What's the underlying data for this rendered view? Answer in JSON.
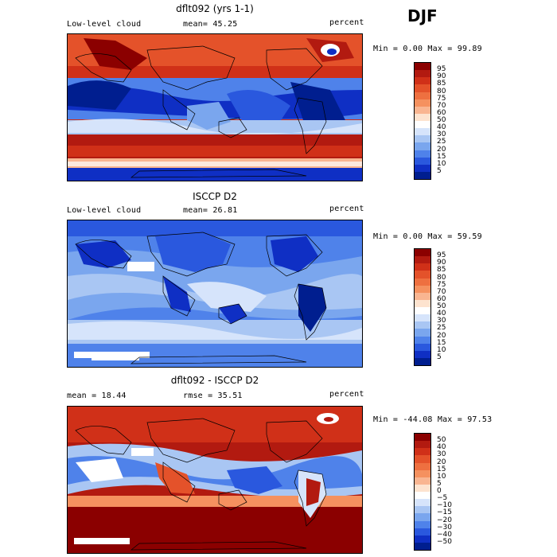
{
  "season": "DJF",
  "panels": [
    {
      "title": "dflt092 (yrs 1-1)",
      "left": "Low-level cloud",
      "middle": "mean=  45.25",
      "right": "percent",
      "stats": "Min =   0.00 Max =  99.89",
      "colorbar": {
        "labels": [
          "95",
          "90",
          "85",
          "80",
          "75",
          "70",
          "60",
          "50",
          "40",
          "30",
          "25",
          "20",
          "15",
          "10",
          "5"
        ],
        "colors": [
          "#8b0000",
          "#b21a10",
          "#d03018",
          "#e4522a",
          "#ee7040",
          "#f5915f",
          "#f9b591",
          "#fde3cf",
          "#ffffff",
          "#d6e4fb",
          "#a9c6f3",
          "#7aa6ee",
          "#4f82ea",
          "#2a58de",
          "#0f2fc4",
          "#001e8f"
        ]
      }
    },
    {
      "title": "ISCCP D2",
      "left": "Low-level cloud",
      "middle": "mean=  26.81",
      "right": "percent",
      "stats": "Min =   0.00 Max =  59.59",
      "colorbar": {
        "labels": [
          "95",
          "90",
          "85",
          "80",
          "75",
          "70",
          "60",
          "50",
          "40",
          "30",
          "25",
          "20",
          "15",
          "10",
          "5"
        ],
        "colors": [
          "#8b0000",
          "#b21a10",
          "#d03018",
          "#e4522a",
          "#ee7040",
          "#f5915f",
          "#f9b591",
          "#fde3cf",
          "#ffffff",
          "#d6e4fb",
          "#a9c6f3",
          "#7aa6ee",
          "#4f82ea",
          "#2a58de",
          "#0f2fc4",
          "#001e8f"
        ]
      }
    },
    {
      "title": "dflt092 - ISCCP D2",
      "left": "mean =  18.44",
      "middle": "rmse =  35.51",
      "right": "percent",
      "stats": "Min = -44.08 Max =  97.53",
      "colorbar": {
        "labels": [
          "50",
          "40",
          "30",
          "20",
          "15",
          "10",
          "5",
          "0",
          "−5",
          "−10",
          "−15",
          "−20",
          "−30",
          "−40",
          "−50"
        ],
        "colors": [
          "#8b0000",
          "#b21a10",
          "#d03018",
          "#e4522a",
          "#ee7040",
          "#f5915f",
          "#f9b591",
          "#fde3cf",
          "#ffffff",
          "#d6e4fb",
          "#a9c6f3",
          "#7aa6ee",
          "#4f82ea",
          "#2a58de",
          "#0f2fc4",
          "#001e8f"
        ]
      }
    }
  ]
}
